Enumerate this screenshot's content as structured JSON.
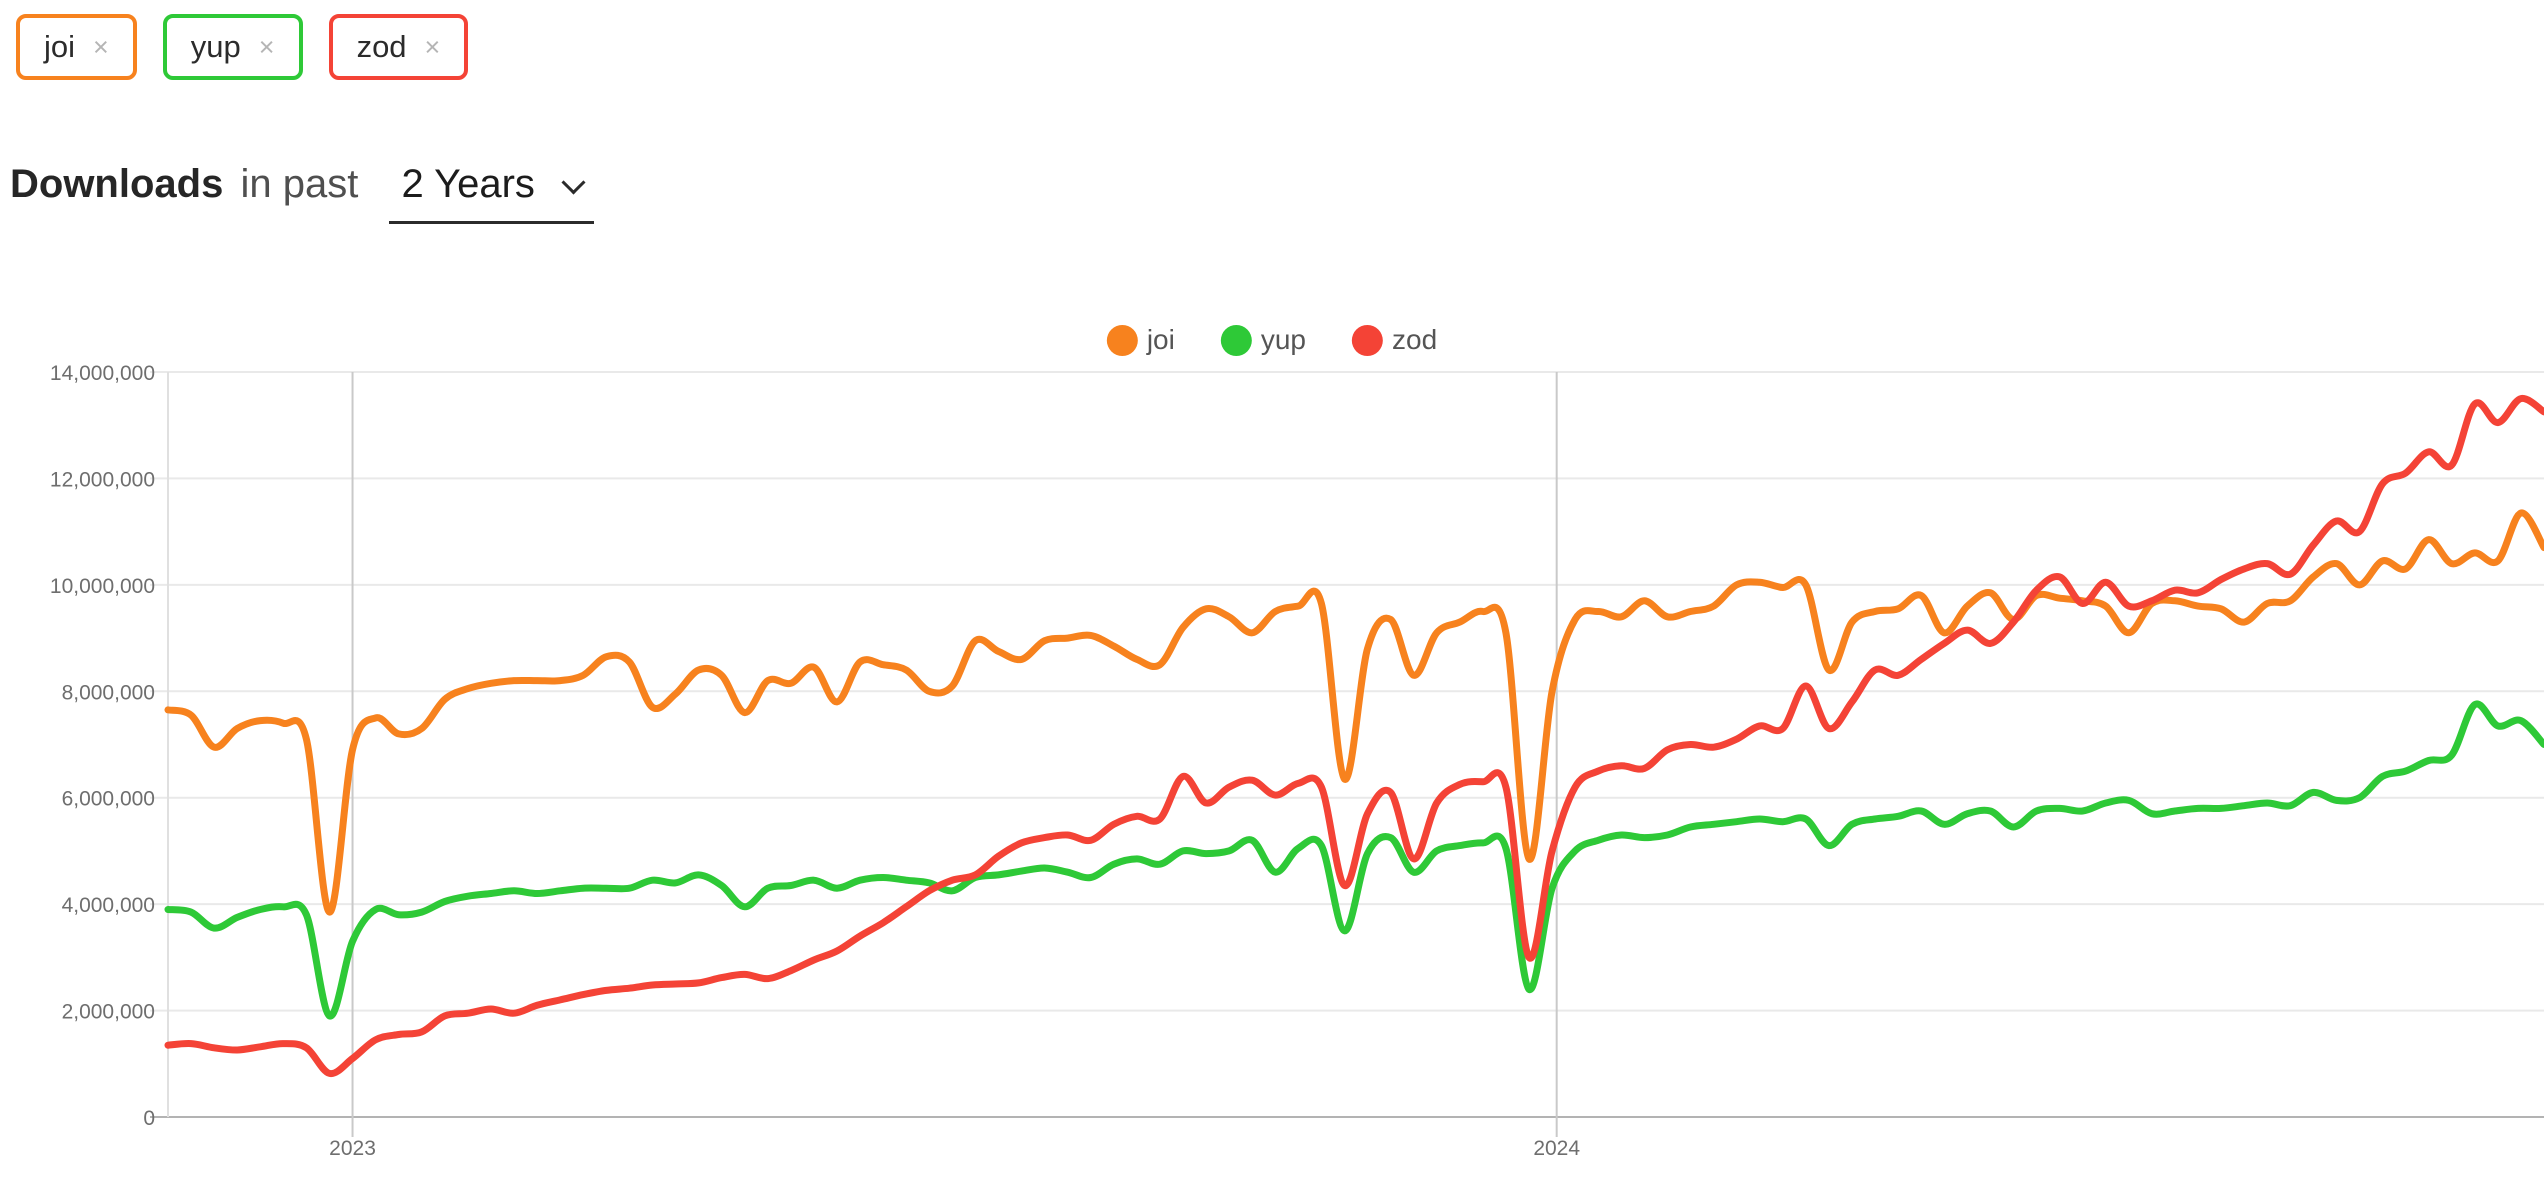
{
  "tags": [
    {
      "label": "joi",
      "color": "#F7821E",
      "remove_label": "×"
    },
    {
      "label": "yup",
      "color": "#2EC937",
      "remove_label": "×"
    },
    {
      "label": "zod",
      "color": "#F44336",
      "remove_label": "×"
    }
  ],
  "title": {
    "lead": "Downloads",
    "middle": "in past",
    "range_value": "2 Years"
  },
  "chart_data": {
    "type": "line",
    "title": "Downloads in past 2 Years",
    "x_unit": "week",
    "points_per_series": 104,
    "grid": true,
    "legend_position": "top-center",
    "x_axis": {
      "tick_labels": [
        "2023",
        "2024"
      ],
      "tick_week_positions": [
        8,
        60.2
      ]
    },
    "y_axis": {
      "min": 0,
      "max": 14000000,
      "tick_interval": 2000000,
      "tick_labels_bottom_up": [
        "0",
        "2,000,000",
        "4,000,000",
        "6,000,000",
        "8,000,000",
        "10,000,000",
        "12,000,000",
        "14,000,000"
      ]
    },
    "series": [
      {
        "name": "joi",
        "color": "#F7821E",
        "values": [
          7650000,
          7550000,
          6950000,
          7300000,
          7450000,
          7400000,
          7100000,
          3850000,
          6900000,
          7500000,
          7200000,
          7300000,
          7850000,
          8050000,
          8150000,
          8200000,
          8200000,
          8200000,
          8300000,
          8650000,
          8550000,
          7700000,
          7950000,
          8400000,
          8300000,
          7600000,
          8200000,
          8150000,
          8450000,
          7800000,
          8550000,
          8500000,
          8400000,
          8000000,
          8100000,
          8950000,
          8750000,
          8600000,
          8950000,
          9000000,
          9050000,
          8850000,
          8600000,
          8500000,
          9200000,
          9550000,
          9400000,
          9100000,
          9500000,
          9600000,
          9650000,
          6350000,
          8800000,
          9350000,
          8300000,
          9100000,
          9300000,
          9500000,
          9100000,
          4850000,
          8000000,
          9350000,
          9500000,
          9400000,
          9700000,
          9400000,
          9500000,
          9600000,
          10000000,
          10050000,
          9950000,
          10000000,
          8400000,
          9300000,
          9500000,
          9550000,
          9800000,
          9100000,
          9600000,
          9850000,
          9350000,
          9800000,
          9750000,
          9700000,
          9600000,
          9100000,
          9650000,
          9700000,
          9600000,
          9550000,
          9300000,
          9650000,
          9700000,
          10150000,
          10400000,
          10000000,
          10450000,
          10300000,
          10850000,
          10400000,
          10600000,
          10450000,
          11350000,
          10700000
        ]
      },
      {
        "name": "yup",
        "color": "#2EC937",
        "values": [
          3900000,
          3850000,
          3550000,
          3750000,
          3900000,
          3950000,
          3800000,
          1900000,
          3300000,
          3900000,
          3800000,
          3850000,
          4050000,
          4150000,
          4200000,
          4250000,
          4200000,
          4250000,
          4300000,
          4300000,
          4300000,
          4450000,
          4400000,
          4550000,
          4350000,
          3950000,
          4300000,
          4350000,
          4450000,
          4300000,
          4450000,
          4500000,
          4450000,
          4400000,
          4250000,
          4500000,
          4550000,
          4620000,
          4680000,
          4600000,
          4500000,
          4750000,
          4850000,
          4750000,
          5000000,
          4950000,
          5000000,
          5200000,
          4600000,
          5050000,
          5100000,
          3500000,
          4950000,
          5250000,
          4600000,
          5000000,
          5100000,
          5150000,
          5050000,
          2400000,
          4300000,
          5000000,
          5200000,
          5300000,
          5250000,
          5300000,
          5450000,
          5500000,
          5550000,
          5600000,
          5550000,
          5600000,
          5100000,
          5500000,
          5600000,
          5650000,
          5750000,
          5500000,
          5700000,
          5750000,
          5450000,
          5750000,
          5800000,
          5750000,
          5900000,
          5950000,
          5700000,
          5750000,
          5800000,
          5800000,
          5850000,
          5900000,
          5850000,
          6100000,
          5950000,
          6000000,
          6400000,
          6500000,
          6700000,
          6800000,
          7750000,
          7350000,
          7450000,
          7000000
        ]
      },
      {
        "name": "zod",
        "color": "#F44336",
        "values": [
          1350000,
          1380000,
          1300000,
          1260000,
          1320000,
          1380000,
          1300000,
          820000,
          1100000,
          1450000,
          1550000,
          1600000,
          1900000,
          1950000,
          2030000,
          1950000,
          2100000,
          2200000,
          2300000,
          2380000,
          2420000,
          2480000,
          2500000,
          2520000,
          2620000,
          2680000,
          2600000,
          2750000,
          2950000,
          3120000,
          3400000,
          3650000,
          3950000,
          4250000,
          4450000,
          4550000,
          4900000,
          5150000,
          5250000,
          5300000,
          5200000,
          5500000,
          5650000,
          5600000,
          6400000,
          5900000,
          6200000,
          6330000,
          6050000,
          6270000,
          6200000,
          4350000,
          5700000,
          6100000,
          4850000,
          5900000,
          6250000,
          6300000,
          6200000,
          3000000,
          5000000,
          6200000,
          6500000,
          6600000,
          6550000,
          6900000,
          7000000,
          6950000,
          7100000,
          7350000,
          7300000,
          8100000,
          7300000,
          7800000,
          8400000,
          8300000,
          8600000,
          8900000,
          9150000,
          8900000,
          9300000,
          9900000,
          10150000,
          9650000,
          10050000,
          9600000,
          9700000,
          9900000,
          9850000,
          10100000,
          10300000,
          10400000,
          10200000,
          10750000,
          11200000,
          11000000,
          11900000,
          12100000,
          12500000,
          12250000,
          13400000,
          13050000,
          13500000,
          13250000
        ]
      }
    ]
  },
  "colors": {
    "grid": "#e9e9e9",
    "axis": "#b3b3b3",
    "year_line": "#c9c9c9",
    "plot_border": "#e0e0e0",
    "tick_text": "#6e6e6e"
  }
}
